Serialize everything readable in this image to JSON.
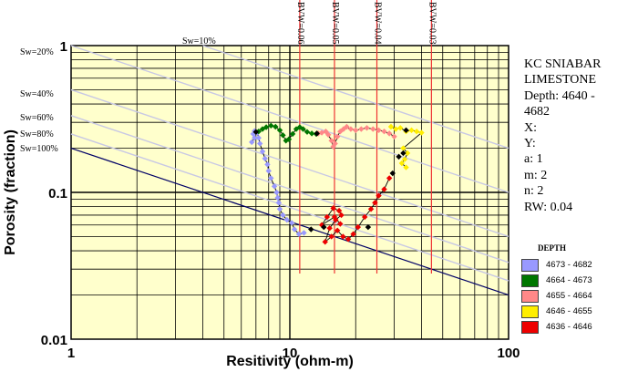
{
  "chart_data": {
    "type": "scatter",
    "xlabel": "Resitivity (ohm-m)",
    "ylabel": "Porosity (fraction)",
    "xscale": "log",
    "yscale": "log",
    "xlim": [
      1,
      100
    ],
    "ylim": [
      0.01,
      1
    ],
    "x_ticks": [
      "1",
      "10",
      "100"
    ],
    "y_ticks": [
      "0.01",
      "0.1",
      "1"
    ],
    "sw_lines": [
      {
        "label": "Sw=20%",
        "sw": 0.2
      },
      {
        "label": "Sw=10%",
        "sw": 0.1
      },
      {
        "label": "Sw=40%",
        "sw": 0.4
      },
      {
        "label": "Sw=60%",
        "sw": 0.6
      },
      {
        "label": "Sw=80%",
        "sw": 0.8
      },
      {
        "label": "Sw=100%",
        "sw": 1.0
      }
    ],
    "bvw_lines": [
      {
        "label": "BVW=0.06",
        "bvw": 0.06
      },
      {
        "label": "BVW=0.05",
        "bvw": 0.05
      },
      {
        "label": "BVW=0.04",
        "bvw": 0.04
      },
      {
        "label": "BVW=0.03",
        "bvw": 0.03
      }
    ],
    "series": [
      {
        "name": "4673 - 4682",
        "color": "#9999ff",
        "points": [
          [
            6.7,
            0.22
          ],
          [
            6.9,
            0.235
          ],
          [
            6.8,
            0.25
          ],
          [
            6.9,
            0.262
          ],
          [
            7.1,
            0.255
          ],
          [
            7.2,
            0.235
          ],
          [
            7.3,
            0.215
          ],
          [
            7.5,
            0.19
          ],
          [
            7.7,
            0.17
          ],
          [
            7.9,
            0.155
          ],
          [
            8.0,
            0.14
          ],
          [
            8.2,
            0.125
          ],
          [
            8.5,
            0.11
          ],
          [
            8.7,
            0.1
          ],
          [
            8.8,
            0.092
          ],
          [
            8.9,
            0.085
          ],
          [
            9.0,
            0.077
          ],
          [
            9.3,
            0.07
          ],
          [
            9.7,
            0.065
          ],
          [
            10.2,
            0.062
          ],
          [
            10.5,
            0.056
          ],
          [
            11.0,
            0.052
          ],
          [
            11.6,
            0.053
          ]
        ]
      },
      {
        "name": "4664 - 4673",
        "color": "#007700",
        "points": [
          [
            7.2,
            0.26
          ],
          [
            7.5,
            0.27
          ],
          [
            7.8,
            0.278
          ],
          [
            8.2,
            0.285
          ],
          [
            8.6,
            0.28
          ],
          [
            9.0,
            0.265
          ],
          [
            9.3,
            0.245
          ],
          [
            9.6,
            0.225
          ],
          [
            9.9,
            0.23
          ],
          [
            10.3,
            0.25
          ],
          [
            10.7,
            0.27
          ],
          [
            11.1,
            0.278
          ],
          [
            11.5,
            0.27
          ],
          [
            12.0,
            0.258
          ],
          [
            12.6,
            0.252
          ],
          [
            13.2,
            0.25
          ]
        ]
      },
      {
        "name": "4655 - 4664",
        "color": "#ff8888",
        "points": [
          [
            13.5,
            0.252
          ],
          [
            14.0,
            0.255
          ],
          [
            14.6,
            0.26
          ],
          [
            15.0,
            0.247
          ],
          [
            15.5,
            0.225
          ],
          [
            15.8,
            0.205
          ],
          [
            16.1,
            0.215
          ],
          [
            16.5,
            0.24
          ],
          [
            17.0,
            0.26
          ],
          [
            17.6,
            0.27
          ],
          [
            18.2,
            0.28
          ],
          [
            19.0,
            0.27
          ],
          [
            20.0,
            0.265
          ],
          [
            21.2,
            0.27
          ],
          [
            22.5,
            0.275
          ],
          [
            24.0,
            0.27
          ],
          [
            25.5,
            0.265
          ],
          [
            27.0,
            0.26
          ],
          [
            28.5,
            0.252
          ],
          [
            30.0,
            0.24
          ]
        ]
      },
      {
        "name": "4646 - 4655",
        "color": "#ffee00",
        "points": [
          [
            29.0,
            0.28
          ],
          [
            30.5,
            0.27
          ],
          [
            32.0,
            0.275
          ],
          [
            34.0,
            0.26
          ],
          [
            36.0,
            0.265
          ],
          [
            38.0,
            0.26
          ],
          [
            40.0,
            0.255
          ],
          [
            33.0,
            0.2
          ],
          [
            34.5,
            0.185
          ],
          [
            33.5,
            0.168
          ],
          [
            32.5,
            0.158
          ],
          [
            34.0,
            0.148
          ]
        ]
      },
      {
        "name": "4636 - 4646",
        "color": "#ee0000",
        "points": [
          [
            28.5,
            0.125
          ],
          [
            27.0,
            0.105
          ],
          [
            25.5,
            0.095
          ],
          [
            24.5,
            0.085
          ],
          [
            23.5,
            0.077
          ],
          [
            22.0,
            0.068
          ],
          [
            20.5,
            0.058
          ],
          [
            19.5,
            0.052
          ],
          [
            18.5,
            0.048
          ],
          [
            17.5,
            0.05
          ],
          [
            16.5,
            0.055
          ],
          [
            15.5,
            0.05
          ],
          [
            14.5,
            0.046
          ],
          [
            15.2,
            0.057
          ],
          [
            16.2,
            0.065
          ],
          [
            17.2,
            0.07
          ],
          [
            16.8,
            0.075
          ],
          [
            15.8,
            0.078
          ],
          [
            14.8,
            0.068
          ],
          [
            14.0,
            0.06
          ],
          [
            16.0,
            0.068
          ],
          [
            17.0,
            0.061
          ]
        ]
      },
      {
        "name": "",
        "color": "#000000",
        "points": [
          [
            7.0,
            0.258
          ],
          [
            13.3,
            0.252
          ],
          [
            29.5,
            0.135
          ],
          [
            31.5,
            0.175
          ],
          [
            33.0,
            0.185
          ],
          [
            34.0,
            0.265
          ],
          [
            12.5,
            0.056
          ],
          [
            14.3,
            0.058
          ],
          [
            22.8,
            0.058
          ]
        ]
      }
    ]
  },
  "info": {
    "line1": "KC SNIABAR",
    "line2": "LIMESTONE",
    "line3": "Depth: 4640 -",
    "line4": "4682",
    "line5": "X:",
    "line6": "Y:",
    "line7": "a: 1",
    "line8": "m: 2",
    "line9": "n: 2",
    "line10": "RW: 0.04"
  },
  "legend": {
    "title": "DEPTH",
    "items": [
      {
        "label": "4673 - 4682",
        "color": "#9999ff"
      },
      {
        "label": "4664 - 4673",
        "color": "#007700"
      },
      {
        "label": "4655 - 4664",
        "color": "#ff8888"
      },
      {
        "label": "4646 - 4655",
        "color": "#ffee00"
      },
      {
        "label": "4636 - 4646",
        "color": "#ee0000"
      }
    ]
  },
  "colors": {
    "plot_bg": "#ffffcc",
    "grid": "#000000",
    "sw_line": "#c8c8e4",
    "sw100_line": "#000066",
    "bvw_line": "#ee3333",
    "connector": "#000000"
  }
}
